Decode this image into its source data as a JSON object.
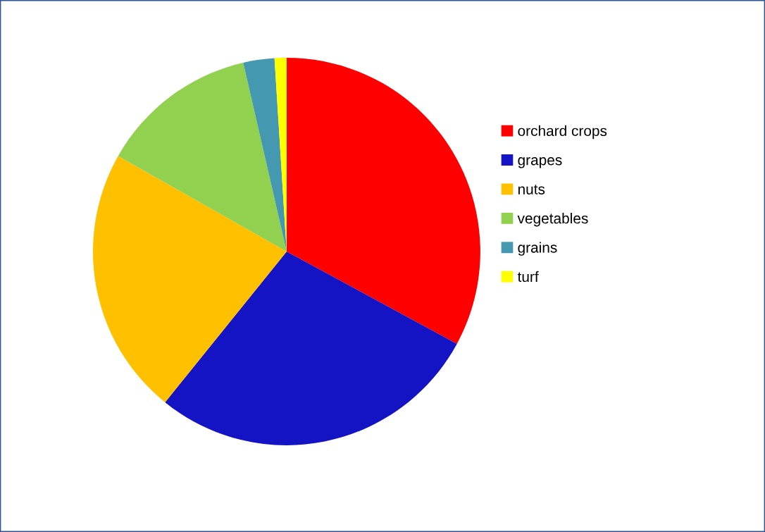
{
  "chart_data": {
    "type": "pie",
    "categories": [
      "orchard crops",
      "grapes",
      "nuts",
      "vegetables",
      "grains",
      "turf"
    ],
    "values": [
      32.9,
      27.9,
      22.4,
      13.2,
      2.6,
      1.0
    ],
    "colors": [
      "#ff0000",
      "#1414c4",
      "#ffc000",
      "#92d050",
      "#4499b0",
      "#ffff00"
    ],
    "legend": "right"
  }
}
